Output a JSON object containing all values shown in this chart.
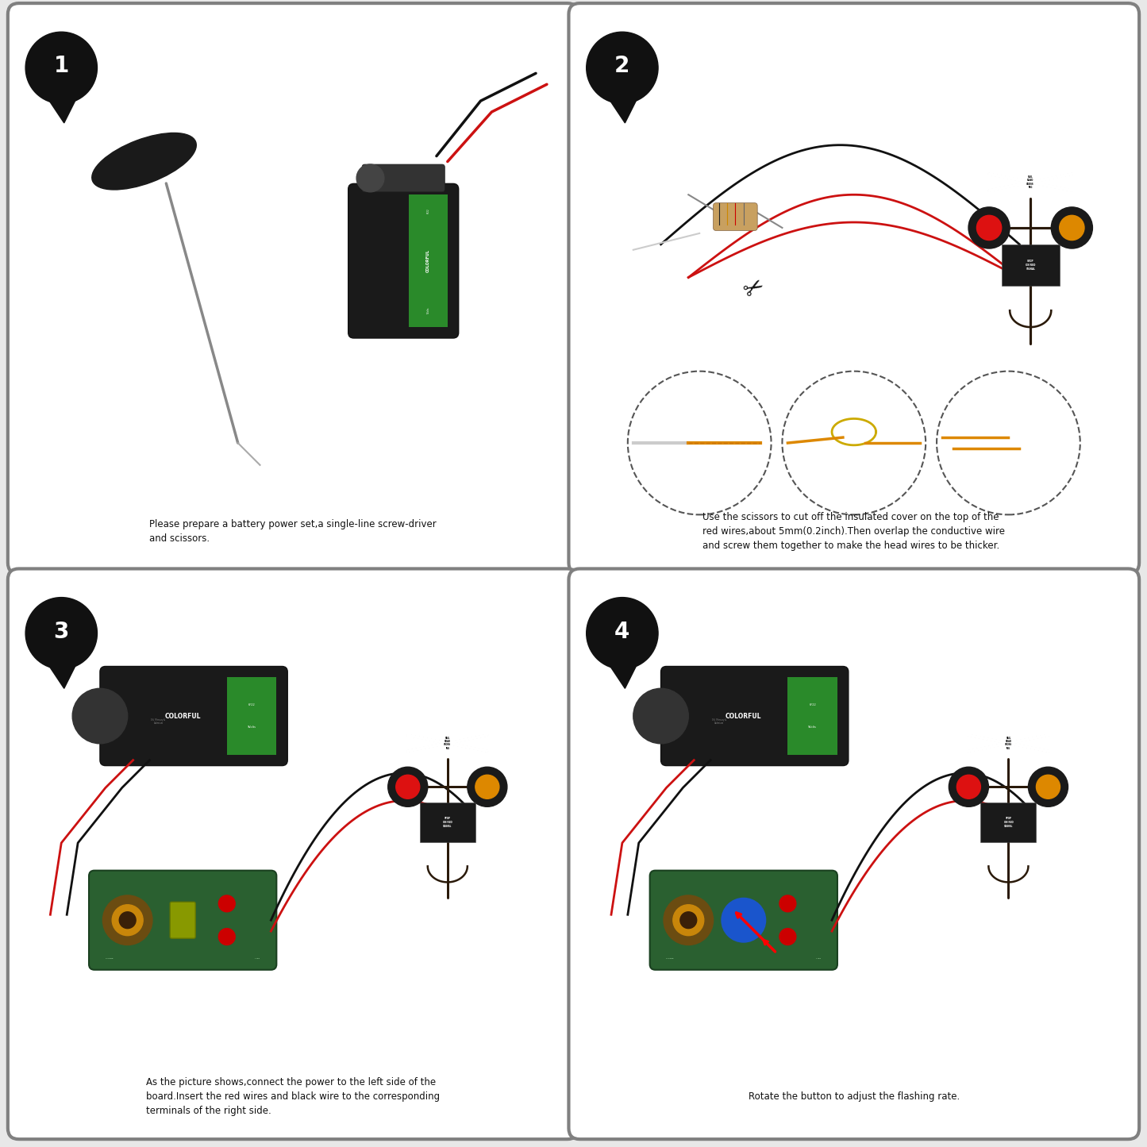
{
  "background_color": "#e8e8e8",
  "panel_bg": "#ffffff",
  "border_color": "#808080",
  "border_width": 2.5,
  "step_circle_color": "#111111",
  "step_text_color": "#ffffff",
  "panels": [
    {
      "id": 1,
      "label": "1",
      "caption": "Please prepare a battery power set,a single-line screw-driver\nand scissors.",
      "col": 0,
      "row": 0
    },
    {
      "id": 2,
      "label": "2",
      "caption": "Use the scissors to cut off the insulated cover on the top of the\nred wires,about 5mm(0.2inch).Then overlap the conductive wire\nand screw them together to make the head wires to be thicker.",
      "col": 1,
      "row": 0
    },
    {
      "id": 3,
      "label": "3",
      "caption": "As the picture shows,connect the power to the left side of the\nboard.Insert the red wires and black wire to the corresponding\nterminals of the right side.",
      "col": 0,
      "row": 1
    },
    {
      "id": 4,
      "label": "4",
      "caption": "Rotate the button to adjust the flashing rate.",
      "col": 1,
      "row": 1
    }
  ]
}
